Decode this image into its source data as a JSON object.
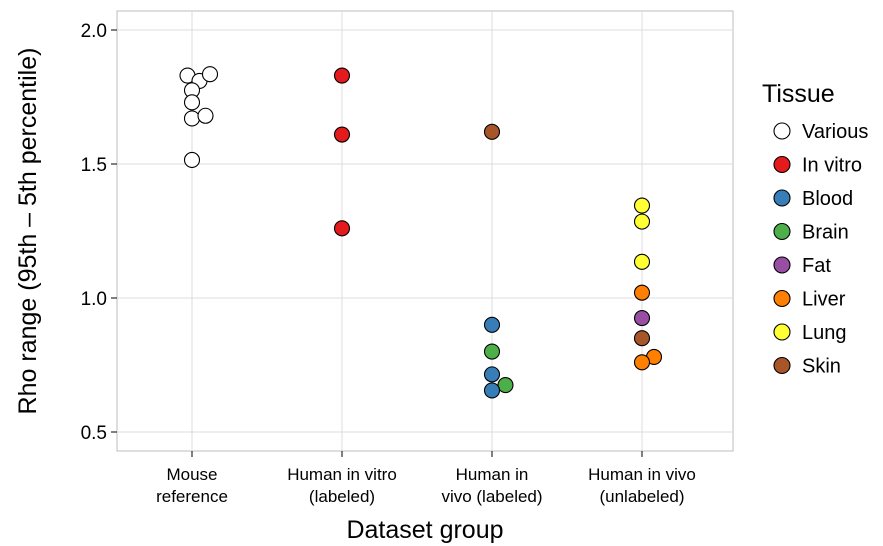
{
  "chart_data": {
    "type": "scatter",
    "title": "",
    "xlabel": "Dataset group",
    "ylabel": "Rho range (95th – 5th percentile)",
    "ylim": [
      0.4,
      2.05
    ],
    "yticks": [
      "0.5",
      "1.0",
      "1.5",
      "2.0"
    ],
    "ytick_values": [
      0.5,
      1.0,
      1.5,
      2.0
    ],
    "grid": true,
    "legend_placement": "right",
    "categories": [
      [
        "Mouse",
        "reference"
      ],
      [
        "Human in vitro",
        "(labeled)"
      ],
      [
        "Human in",
        "vivo (labeled)"
      ],
      [
        "Human in vivo",
        "(unlabeled)"
      ]
    ],
    "legend": {
      "title": "Tissue",
      "entries": [
        {
          "name": "Various",
          "color": "#ffffff"
        },
        {
          "name": "In vitro",
          "color": "#e41a1c"
        },
        {
          "name": "Blood",
          "color": "#377eb8"
        },
        {
          "name": "Brain",
          "color": "#4daf4a"
        },
        {
          "name": "Fat",
          "color": "#984ea3"
        },
        {
          "name": "Liver",
          "color": "#ff7f00"
        },
        {
          "name": "Lung",
          "color": "#ffff33"
        },
        {
          "name": "Skin",
          "color": "#a65628"
        }
      ]
    },
    "points": [
      {
        "group": 0,
        "jitter": -0.03,
        "y": 1.83,
        "tissue": "Various"
      },
      {
        "group": 0,
        "jitter": 0.05,
        "y": 1.81,
        "tissue": "Various"
      },
      {
        "group": 0,
        "jitter": 0.12,
        "y": 1.835,
        "tissue": "Various"
      },
      {
        "group": 0,
        "jitter": 0.0,
        "y": 1.775,
        "tissue": "Various"
      },
      {
        "group": 0,
        "jitter": 0.0,
        "y": 1.73,
        "tissue": "Various"
      },
      {
        "group": 0,
        "jitter": 0.0,
        "y": 1.67,
        "tissue": "Various"
      },
      {
        "group": 0,
        "jitter": 0.09,
        "y": 1.68,
        "tissue": "Various"
      },
      {
        "group": 0,
        "jitter": 0.0,
        "y": 1.515,
        "tissue": "Various"
      },
      {
        "group": 1,
        "jitter": 0.0,
        "y": 1.83,
        "tissue": "In vitro"
      },
      {
        "group": 1,
        "jitter": 0.0,
        "y": 1.61,
        "tissue": "In vitro"
      },
      {
        "group": 1,
        "jitter": 0.0,
        "y": 1.26,
        "tissue": "In vitro"
      },
      {
        "group": 2,
        "jitter": 0.0,
        "y": 1.62,
        "tissue": "Skin"
      },
      {
        "group": 2,
        "jitter": 0.0,
        "y": 0.9,
        "tissue": "Blood"
      },
      {
        "group": 2,
        "jitter": 0.0,
        "y": 0.8,
        "tissue": "Brain"
      },
      {
        "group": 2,
        "jitter": 0.0,
        "y": 0.715,
        "tissue": "Blood"
      },
      {
        "group": 2,
        "jitter": 0.09,
        "y": 0.675,
        "tissue": "Brain"
      },
      {
        "group": 2,
        "jitter": 0.0,
        "y": 0.655,
        "tissue": "Blood"
      },
      {
        "group": 3,
        "jitter": 0.0,
        "y": 1.345,
        "tissue": "Lung"
      },
      {
        "group": 3,
        "jitter": 0.0,
        "y": 1.285,
        "tissue": "Lung"
      },
      {
        "group": 3,
        "jitter": 0.0,
        "y": 1.135,
        "tissue": "Lung"
      },
      {
        "group": 3,
        "jitter": 0.0,
        "y": 1.02,
        "tissue": "Liver"
      },
      {
        "group": 3,
        "jitter": 0.0,
        "y": 0.925,
        "tissue": "Fat"
      },
      {
        "group": 3,
        "jitter": 0.0,
        "y": 0.85,
        "tissue": "Skin"
      },
      {
        "group": 3,
        "jitter": 0.08,
        "y": 0.78,
        "tissue": "Liver"
      },
      {
        "group": 3,
        "jitter": 0.0,
        "y": 0.76,
        "tissue": "Liver"
      }
    ]
  }
}
